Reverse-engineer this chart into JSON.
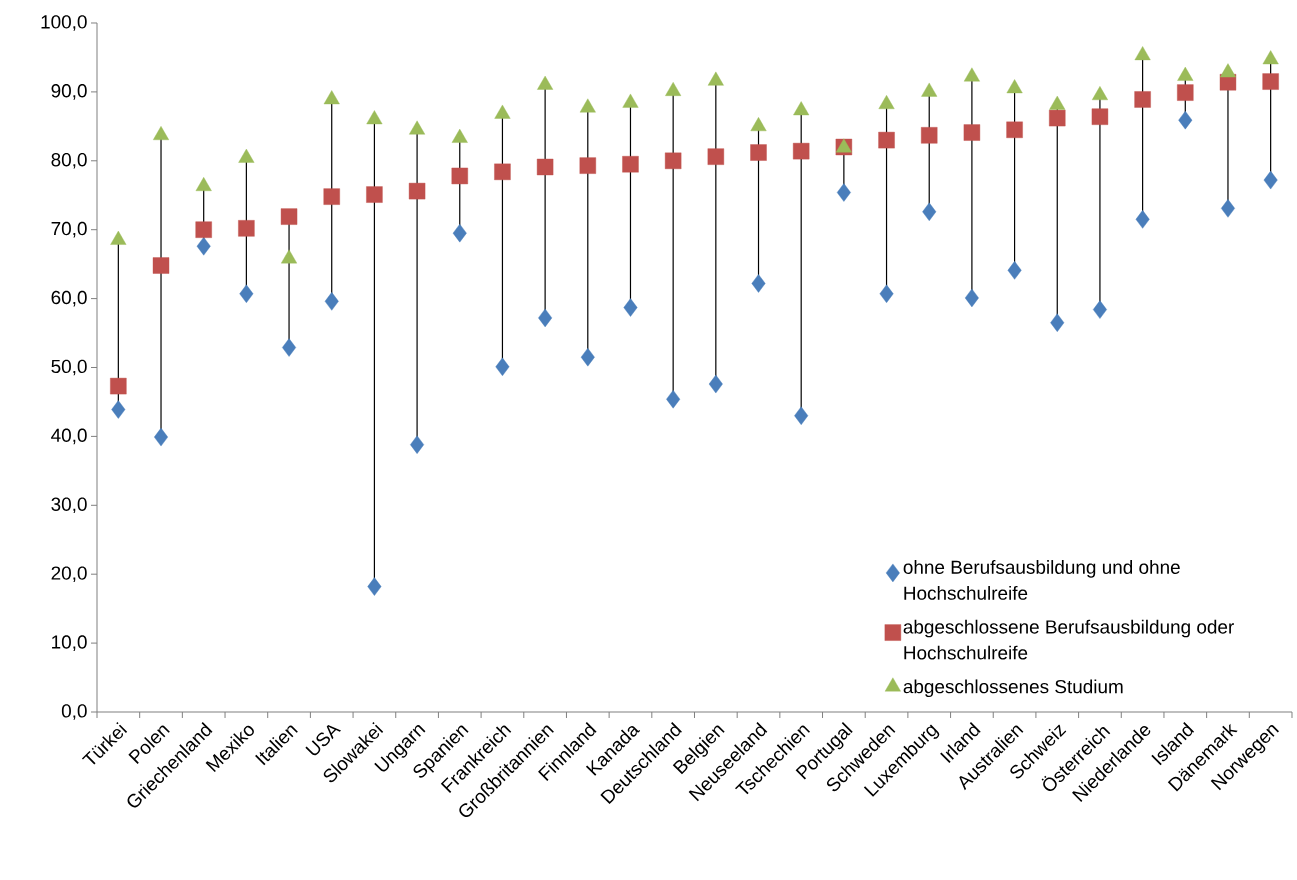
{
  "chart_data": {
    "type": "scatter",
    "categories": [
      "Türkei",
      "Polen",
      "Griechenland",
      "Mexiko",
      "Italien",
      "USA",
      "Slowakei",
      "Ungarn",
      "Spanien",
      "Frankreich",
      "Großbritannien",
      "Finnland",
      "Kanada",
      "Deutschland",
      "Belgien",
      "Neuseeland",
      "Tschechien",
      "Portugal",
      "Schweden",
      "Luxemburg",
      "Irland",
      "Australien",
      "Schweiz",
      "Österreich",
      "Niederlande",
      "Island",
      "Dänemark",
      "Norwegen"
    ],
    "series": [
      {
        "name": "ohne Berufsausbildung und ohne Hochschulreife",
        "color": "#4a7ebb",
        "marker": "diamond",
        "values": [
          43.9,
          39.9,
          67.6,
          60.7,
          52.9,
          59.6,
          18.2,
          38.8,
          69.5,
          50.1,
          57.2,
          51.5,
          58.7,
          45.4,
          47.6,
          62.2,
          43.0,
          75.4,
          60.7,
          72.6,
          60.1,
          64.1,
          56.5,
          58.4,
          71.5,
          85.9,
          73.1,
          77.2
        ]
      },
      {
        "name": "abgeschlossene Berufsausbildung oder Hochschulreife",
        "color": "#c0504d",
        "marker": "square",
        "values": [
          47.3,
          64.8,
          70.0,
          70.2,
          71.9,
          74.8,
          75.1,
          75.6,
          77.8,
          78.4,
          79.1,
          79.3,
          79.5,
          80.0,
          80.6,
          81.2,
          81.4,
          82.0,
          83.0,
          83.7,
          84.1,
          84.5,
          86.2,
          86.4,
          88.9,
          89.9,
          91.4,
          91.5
        ]
      },
      {
        "name": "abgeschlossenes Studium",
        "color": "#9bbb59",
        "marker": "triangle",
        "values": [
          68.5,
          83.7,
          76.3,
          80.4,
          65.8,
          88.9,
          86.0,
          84.5,
          83.3,
          86.8,
          91.0,
          87.7,
          88.4,
          90.1,
          91.6,
          85.0,
          87.3,
          81.9,
          88.2,
          90.0,
          92.2,
          90.5,
          88.1,
          89.5,
          95.3,
          92.3,
          92.8,
          94.7
        ]
      }
    ],
    "ylim": [
      0,
      100
    ],
    "yticks": [
      {
        "value": 0,
        "label": "0,0"
      },
      {
        "value": 10,
        "label": "10,0"
      },
      {
        "value": 20,
        "label": "20,0"
      },
      {
        "value": 30,
        "label": "30,0"
      },
      {
        "value": 40,
        "label": "40,0"
      },
      {
        "value": 50,
        "label": "50,0"
      },
      {
        "value": 60,
        "label": "60,0"
      },
      {
        "value": 70,
        "label": "70,0"
      },
      {
        "value": 80,
        "label": "80,0"
      },
      {
        "value": 90,
        "label": "90,0"
      },
      {
        "value": 100,
        "label": "100,0"
      }
    ],
    "legend": "bottom right"
  }
}
